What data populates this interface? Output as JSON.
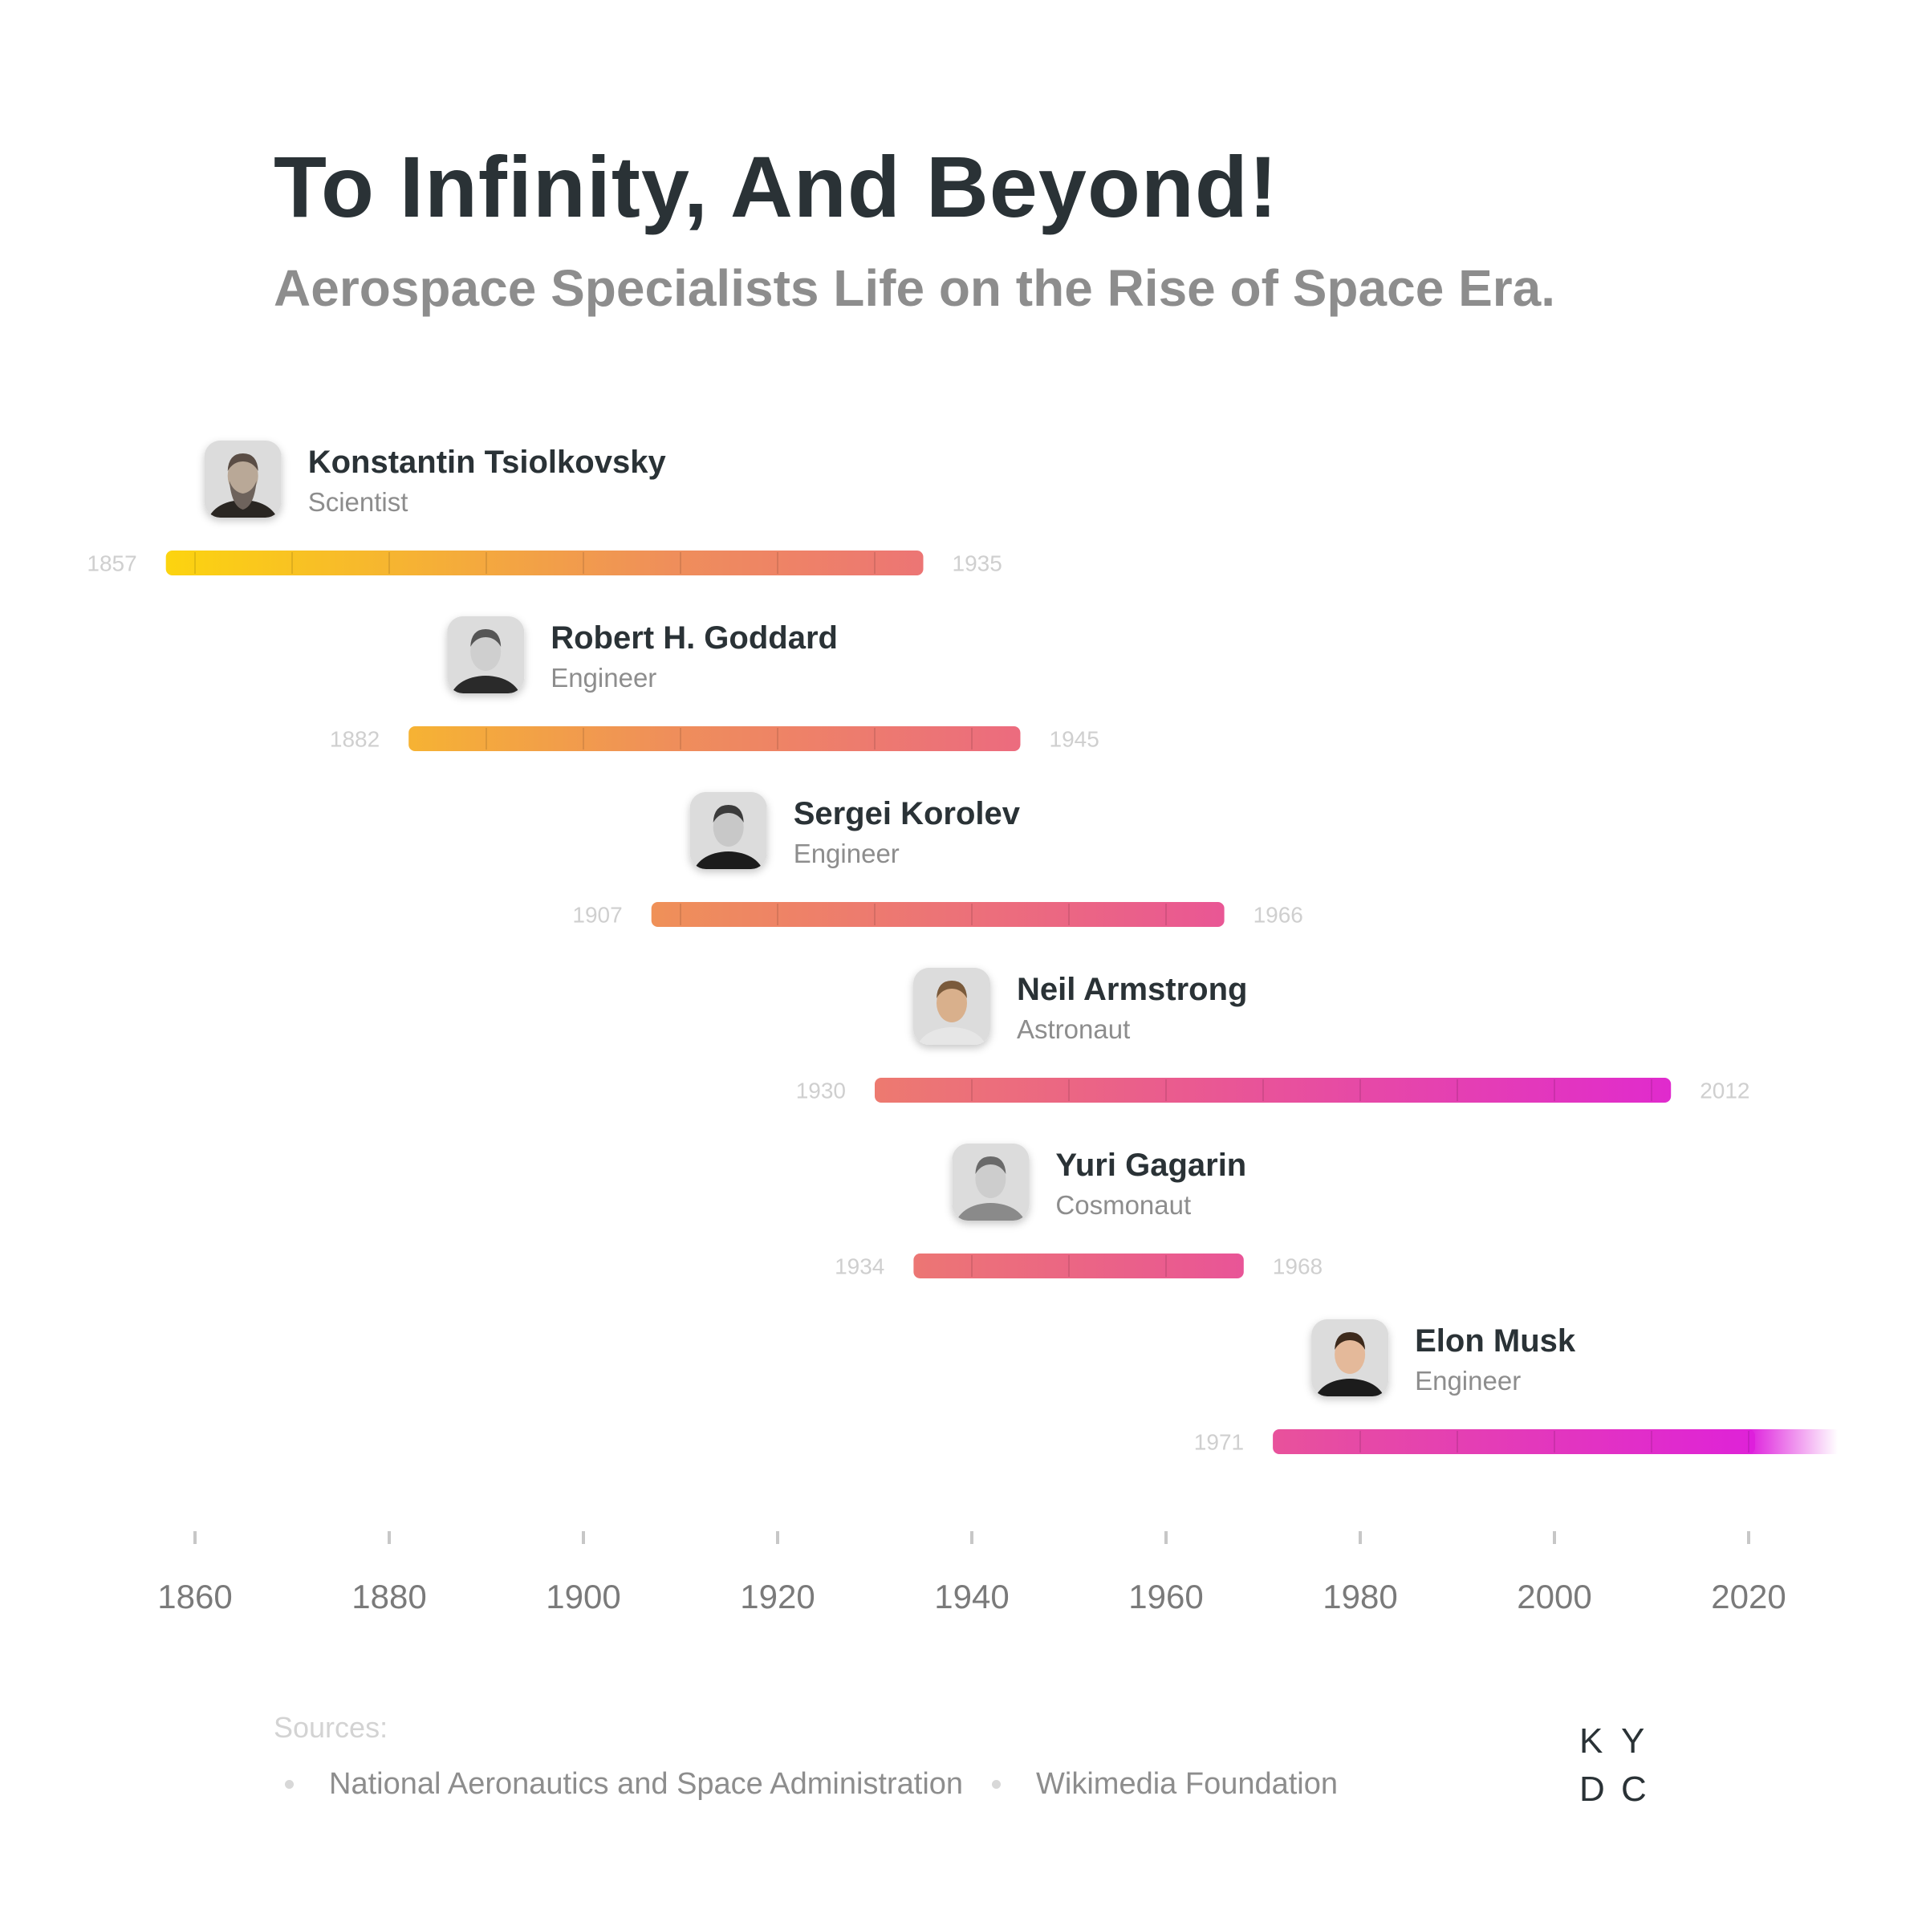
{
  "header": {
    "title": "To Infinity, And Beyond!",
    "subtitle": "Aerospace Specialists Life on the Rise of Space Era."
  },
  "chart_data": {
    "type": "timeline",
    "x_axis": {
      "range": [
        1857,
        2030
      ],
      "ticks": [
        1860,
        1880,
        1900,
        1920,
        1940,
        1960,
        1980,
        2000,
        2020
      ]
    },
    "colors": {
      "start": "#fcd40f",
      "mid": "#ef8f5a",
      "rose": "#ea5c8e",
      "end": "#de1fdc"
    },
    "people": [
      {
        "name": "Konstantin Tsiolkovsky",
        "role": "Scientist",
        "birth": 1857,
        "death": 1935,
        "birth_label": "1857",
        "death_label": "1935",
        "portrait": "tsiolkovsky-portrait-icon"
      },
      {
        "name": "Robert H. Goddard",
        "role": "Engineer",
        "birth": 1882,
        "death": 1945,
        "birth_label": "1882",
        "death_label": "1945",
        "portrait": "goddard-portrait-icon"
      },
      {
        "name": "Sergei Korolev",
        "role": "Engineer",
        "birth": 1907,
        "death": 1966,
        "birth_label": "1907",
        "death_label": "1966",
        "portrait": "korolev-portrait-icon"
      },
      {
        "name": "Neil Armstrong",
        "role": "Astronaut",
        "birth": 1930,
        "death": 2012,
        "birth_label": "1930",
        "death_label": "2012",
        "portrait": "armstrong-portrait-icon"
      },
      {
        "name": "Yuri Gagarin",
        "role": "Cosmonaut",
        "birth": 1934,
        "death": 1968,
        "birth_label": "1934",
        "death_label": "1968",
        "portrait": "gagarin-portrait-icon"
      },
      {
        "name": "Elon Musk",
        "role": "Engineer",
        "birth": 1971,
        "death": null,
        "birth_label": "1971",
        "death_label": null,
        "portrait": "musk-portrait-icon"
      }
    ]
  },
  "sources": {
    "title": "Sources:",
    "items": [
      "National Aeronautics and Space Administration",
      "Wikimedia Foundation"
    ]
  },
  "logo": {
    "letters": [
      "K",
      "Y",
      "D",
      "C"
    ]
  }
}
